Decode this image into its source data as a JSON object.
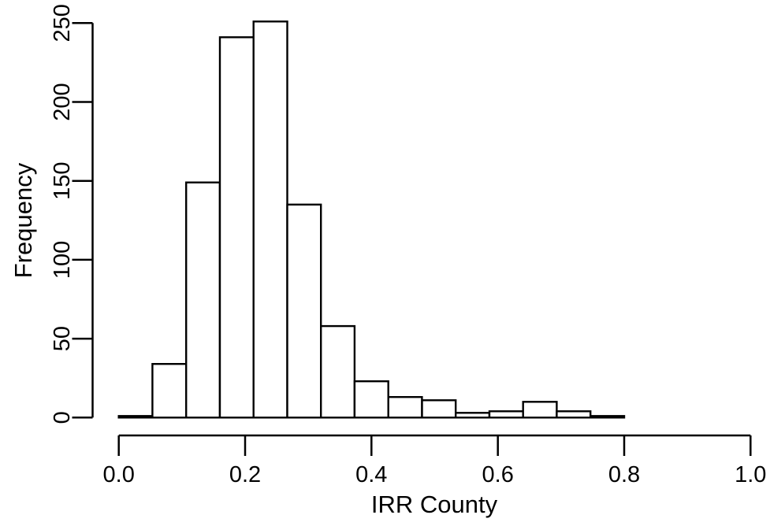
{
  "chart_data": {
    "type": "bar",
    "subtype": "histogram",
    "title": "",
    "xlabel": "IRR County",
    "ylabel": "Frequency",
    "xlim": [
      0.0,
      1.0
    ],
    "ylim": [
      0,
      250
    ],
    "grid": false,
    "legend": false,
    "x_ticks": {
      "values": [
        0.0,
        0.2,
        0.4,
        0.6,
        0.8,
        1.0
      ],
      "labels": [
        "0.0",
        "0.2",
        "0.4",
        "0.6",
        "0.8",
        "1.0"
      ]
    },
    "y_ticks": {
      "values": [
        0,
        50,
        100,
        150,
        200,
        250
      ],
      "labels": [
        "0",
        "50",
        "100",
        "150",
        "200",
        "250"
      ]
    },
    "bins": {
      "breaks": [
        0.0,
        0.0533,
        0.1067,
        0.16,
        0.2133,
        0.2667,
        0.32,
        0.3733,
        0.4267,
        0.48,
        0.5333,
        0.5867,
        0.64,
        0.6933,
        0.7467,
        0.8
      ],
      "counts": [
        1,
        34,
        149,
        241,
        251,
        135,
        58,
        23,
        13,
        11,
        3,
        4,
        10,
        4,
        1
      ]
    },
    "colors": {
      "bar_fill": "#ffffff",
      "bar_stroke": "#000000",
      "axis": "#000000",
      "background": "#ffffff"
    }
  }
}
